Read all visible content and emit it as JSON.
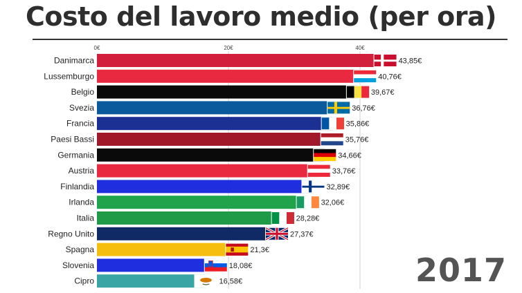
{
  "title": "Costo del lavoro medio (per ora)",
  "year": "2017",
  "chart_data": {
    "type": "bar",
    "orientation": "horizontal",
    "title": "Costo del lavoro medio (per ora)",
    "xlim": [
      0,
      46
    ],
    "ticks": [
      {
        "value": 0,
        "label": "0€"
      },
      {
        "value": 20,
        "label": "20€"
      },
      {
        "value": 40,
        "label": "40€"
      }
    ],
    "grid": true,
    "bars": [
      {
        "category": "Danimarca",
        "value": 43.85,
        "label": "43,85€",
        "color": "#d21f3c",
        "flag": "denmark-flag"
      },
      {
        "category": "Lussemburgo",
        "value": 40.76,
        "label": "40,76€",
        "color": "#e8293f",
        "flag": "luxembourg-flag"
      },
      {
        "category": "Belgio",
        "value": 39.67,
        "label": "39,67€",
        "color": "#0a0a0a",
        "flag": "belgium-flag"
      },
      {
        "category": "Svezia",
        "value": 36.76,
        "label": "36,76€",
        "color": "#0a5a9c",
        "flag": "sweden-flag"
      },
      {
        "category": "Francia",
        "value": 35.86,
        "label": "35,86€",
        "color": "#1c2f93",
        "flag": "france-flag"
      },
      {
        "category": "Paesi Bassi",
        "value": 35.76,
        "label": "35,76€",
        "color": "#a1182a",
        "flag": "netherlands-flag"
      },
      {
        "category": "Germania",
        "value": 34.66,
        "label": "34,66€",
        "color": "#0a0a0a",
        "flag": "germany-flag"
      },
      {
        "category": "Austria",
        "value": 33.76,
        "label": "33,76€",
        "color": "#e8293f",
        "flag": "austria-flag"
      },
      {
        "category": "Finlandia",
        "value": 32.89,
        "label": "32,89€",
        "color": "#1f2fe0",
        "flag": "finland-flag"
      },
      {
        "category": "Irlanda",
        "value": 32.06,
        "label": "32,06€",
        "color": "#21a34b",
        "flag": "ireland-flag"
      },
      {
        "category": "Italia",
        "value": 28.28,
        "label": "28,28€",
        "color": "#1f9a46",
        "flag": "italy-flag"
      },
      {
        "category": "Regno Unito",
        "value": 27.37,
        "label": "27,37€",
        "color": "#102a66",
        "flag": "uk-flag"
      },
      {
        "category": "Spagna",
        "value": 21.3,
        "label": "21,3€",
        "color": "#f6bf10",
        "flag": "spain-flag"
      },
      {
        "category": "Slovenia",
        "value": 18.08,
        "label": "18,08€",
        "color": "#1f2fe0",
        "flag": "slovenia-flag"
      },
      {
        "category": "Cipro",
        "value": 16.58,
        "label": "16,58€",
        "color": "#3aa5a5",
        "flag": "cyprus-flag"
      }
    ]
  }
}
